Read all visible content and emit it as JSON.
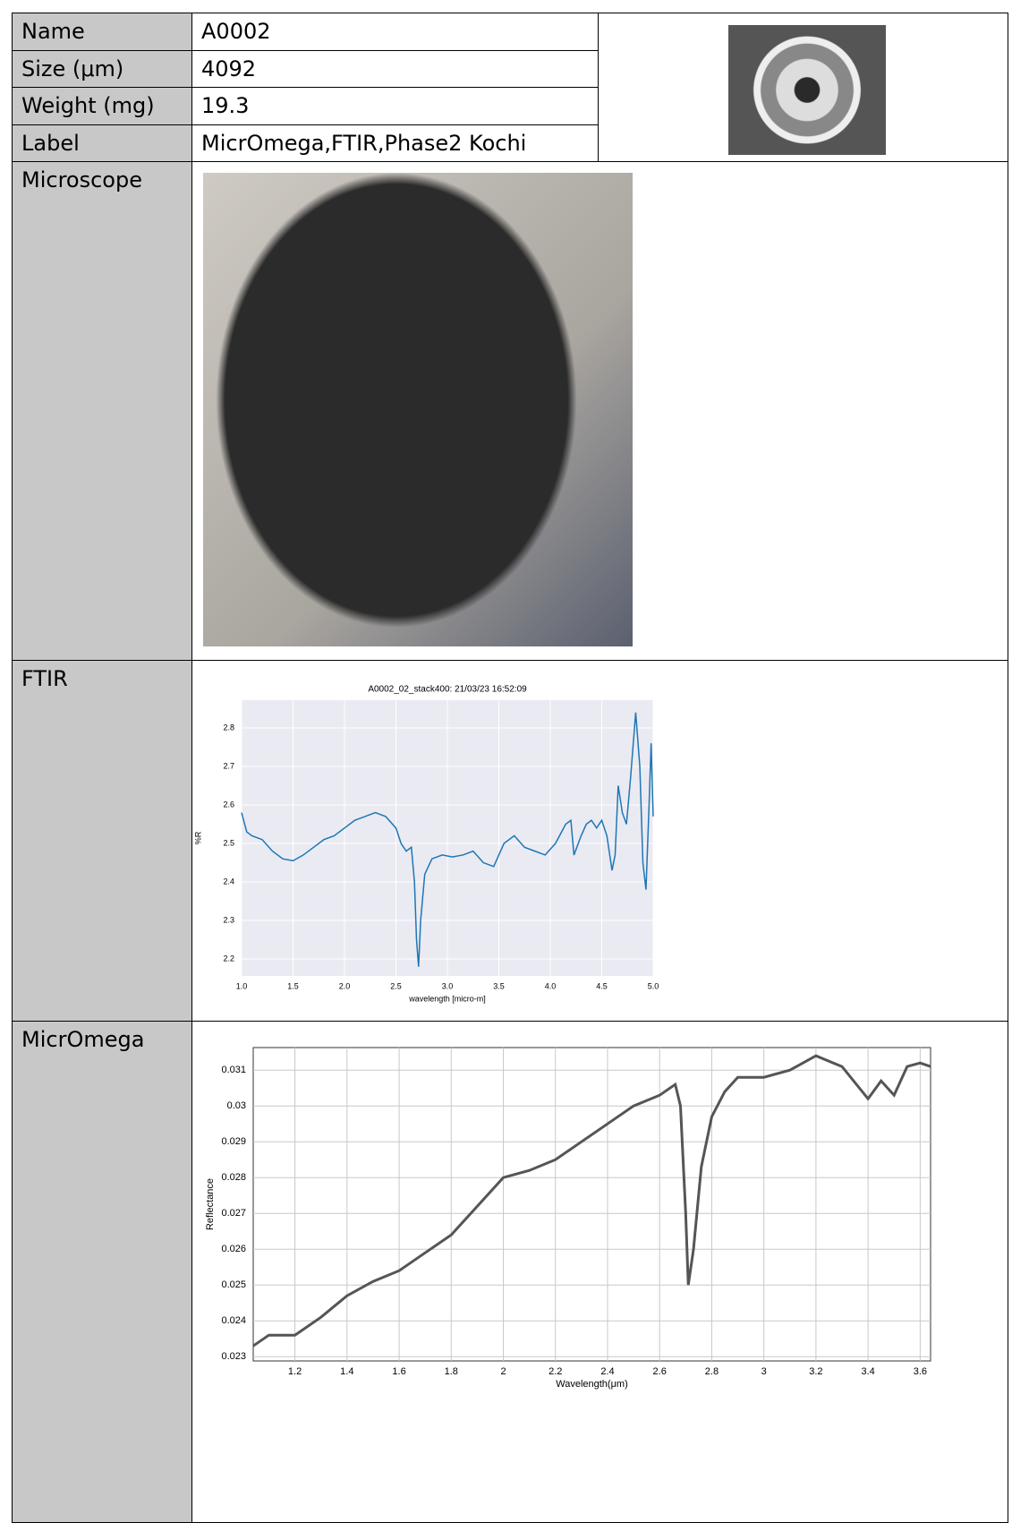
{
  "table": {
    "rows": [
      [
        "Name",
        "A0002"
      ],
      [
        "Size (μm)",
        "4092"
      ],
      [
        "Weight (mg)",
        "19.3"
      ],
      [
        "Label",
        "MicrOmega,FTIR,Phase2 Kochi"
      ],
      [
        "Microscope"
      ],
      [
        "FTIR"
      ],
      [
        "MicrOmega"
      ]
    ]
  },
  "chart_data": [
    {
      "type": "line",
      "title": "A0002_02_stack400:  21/03/23 16:52:09",
      "x_label": "wavelength [micro-m]",
      "y_label": "%R",
      "color": "#1f77b4",
      "grid": true,
      "xlim": [
        1.0,
        5.0
      ],
      "ylim": [
        2.156,
        2.872
      ],
      "xticks": [
        {
          "value": 1,
          "label": "1.0"
        },
        1.5,
        {
          "value": 2,
          "label": "2.0"
        },
        2.5,
        {
          "value": 3,
          "label": "3.0"
        },
        3.5,
        {
          "value": 4,
          "label": "4.0"
        },
        4.5,
        {
          "value": 5,
          "label": "5.0"
        }
      ],
      "yticks": [
        2.2,
        2.3,
        2.4,
        2.5,
        2.6,
        2.7,
        2.8
      ],
      "x": [
        1.0,
        1.05,
        1.1,
        1.2,
        1.3,
        1.4,
        1.5,
        1.6,
        1.7,
        1.8,
        1.9,
        2.0,
        2.1,
        2.2,
        2.3,
        2.4,
        2.5,
        2.55,
        2.6,
        2.65,
        2.68,
        2.7,
        2.72,
        2.74,
        2.78,
        2.85,
        2.95,
        3.05,
        3.15,
        3.25,
        3.35,
        3.45,
        3.55,
        3.65,
        3.75,
        3.85,
        3.95,
        4.05,
        4.15,
        4.2,
        4.23,
        4.3,
        4.35,
        4.4,
        4.45,
        4.5,
        4.55,
        4.6,
        4.63,
        4.66,
        4.7,
        4.74,
        4.78,
        4.83,
        4.87,
        4.9,
        4.93,
        4.96,
        4.98,
        5.0
      ],
      "values": [
        2.58,
        2.53,
        2.52,
        2.51,
        2.48,
        2.46,
        2.455,
        2.47,
        2.49,
        2.51,
        2.52,
        2.54,
        2.56,
        2.57,
        2.58,
        2.57,
        2.54,
        2.5,
        2.48,
        2.49,
        2.4,
        2.25,
        2.18,
        2.3,
        2.42,
        2.46,
        2.47,
        2.465,
        2.47,
        2.48,
        2.45,
        2.44,
        2.5,
        2.52,
        2.49,
        2.48,
        2.47,
        2.5,
        2.55,
        2.56,
        2.47,
        2.52,
        2.55,
        2.56,
        2.54,
        2.56,
        2.52,
        2.43,
        2.47,
        2.65,
        2.58,
        2.55,
        2.67,
        2.84,
        2.7,
        2.45,
        2.38,
        2.6,
        2.76,
        2.57
      ]
    },
    {
      "type": "line",
      "x_label": "Wavelength(μm)",
      "y_label": "Reflectance",
      "color": "#555555",
      "grid": true,
      "xlim": [
        1.04,
        3.64
      ],
      "ylim": [
        0.02288,
        0.03163
      ],
      "xticks": [
        1.2,
        1.4,
        1.6,
        1.8,
        2,
        2.2,
        2.4,
        2.6,
        2.8,
        3,
        3.2,
        3.4,
        3.6
      ],
      "yticks": [
        0.023,
        0.024,
        0.025,
        0.026,
        0.027,
        0.028,
        0.029,
        0.03,
        0.031
      ],
      "x": [
        1.04,
        1.1,
        1.2,
        1.3,
        1.4,
        1.5,
        1.6,
        1.7,
        1.8,
        1.9,
        2.0,
        2.1,
        2.2,
        2.3,
        2.4,
        2.5,
        2.6,
        2.66,
        2.68,
        2.7,
        2.71,
        2.73,
        2.76,
        2.8,
        2.85,
        2.9,
        3.0,
        3.1,
        3.2,
        3.3,
        3.4,
        3.45,
        3.5,
        3.55,
        3.6,
        3.64
      ],
      "values": [
        0.0233,
        0.0236,
        0.0236,
        0.0241,
        0.0247,
        0.0251,
        0.0254,
        0.0259,
        0.0264,
        0.0272,
        0.028,
        0.0282,
        0.0285,
        0.029,
        0.0295,
        0.03,
        0.0303,
        0.0306,
        0.03,
        0.027,
        0.025,
        0.026,
        0.0283,
        0.0297,
        0.0304,
        0.0308,
        0.0308,
        0.031,
        0.0314,
        0.0311,
        0.0302,
        0.0307,
        0.0303,
        0.0311,
        0.0312,
        0.0311
      ]
    }
  ]
}
